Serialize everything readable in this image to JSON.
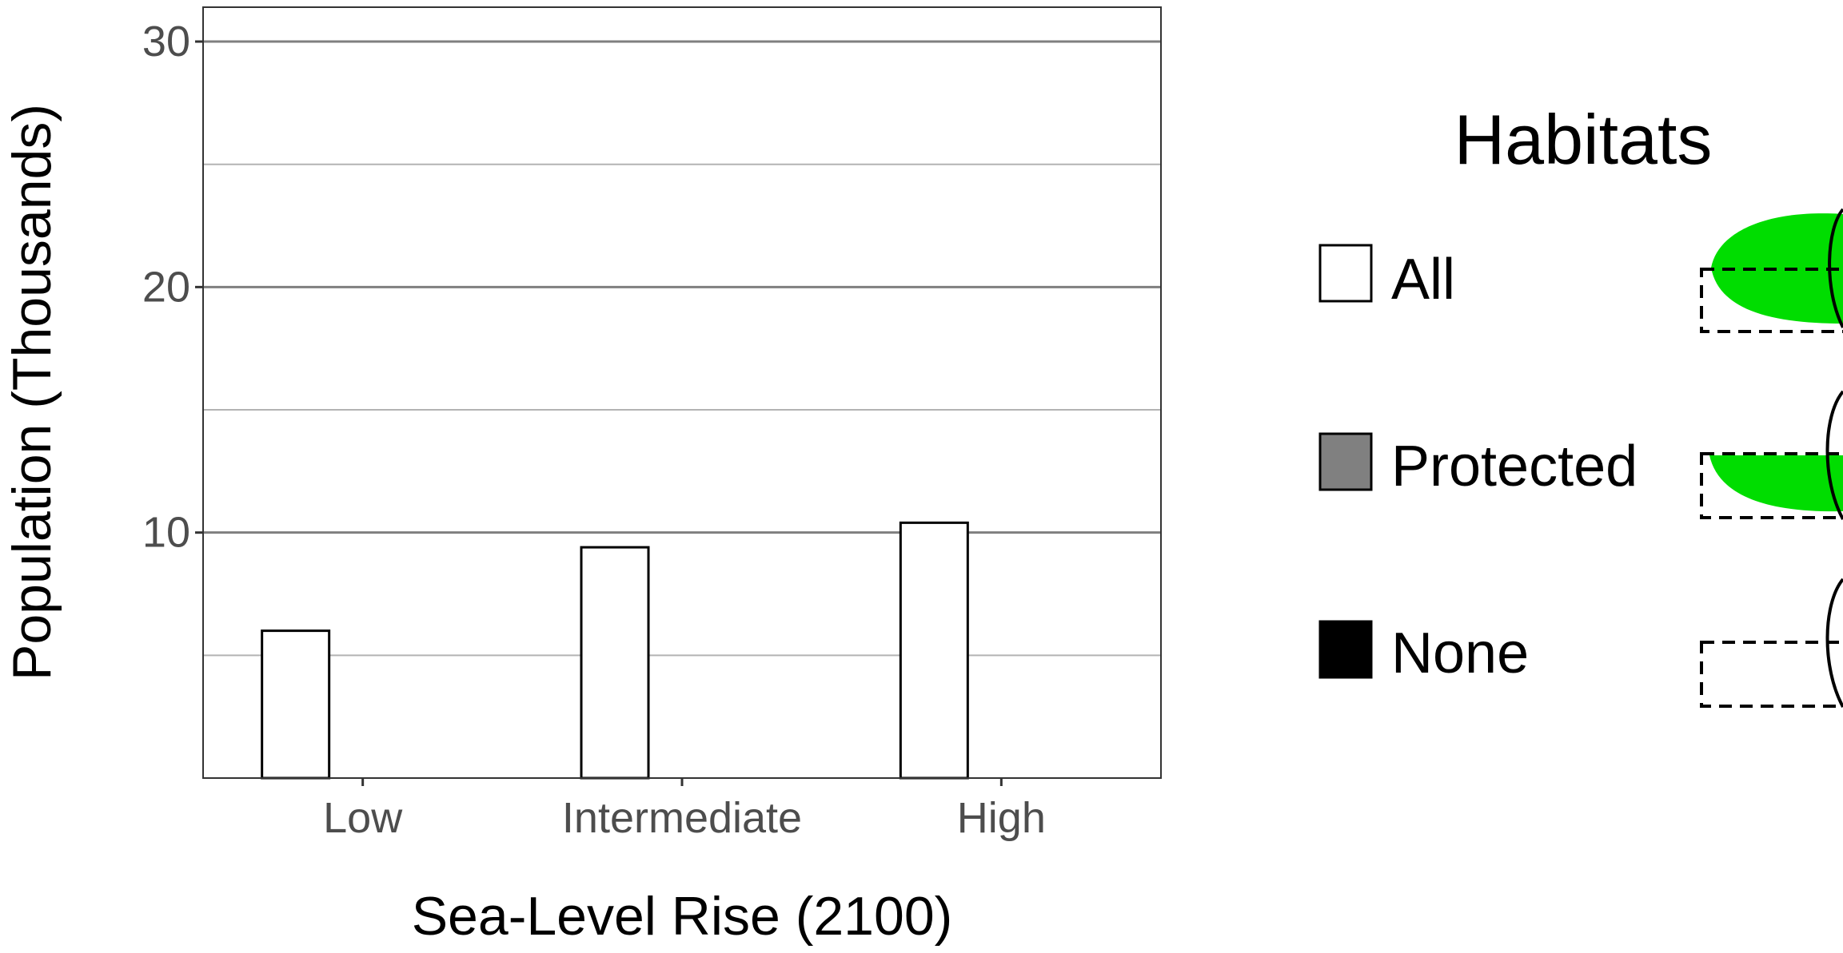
{
  "chart_data": {
    "type": "bar",
    "categories": [
      "Low",
      "Intermediate",
      "High"
    ],
    "series": [
      {
        "name": "All",
        "values": [
          6.0,
          9.4,
          10.4
        ],
        "color": "#ffffff"
      },
      {
        "name": "Protected",
        "values": [
          0,
          0,
          0
        ],
        "color": "#808080"
      },
      {
        "name": "None",
        "values": [
          0,
          0,
          0
        ],
        "color": "#000000"
      }
    ],
    "title": "",
    "xlabel": "Sea-Level Rise (2100)",
    "ylabel": "Population (Thousands)",
    "ylim": [
      0,
      31.4
    ],
    "yticks": [
      10,
      20,
      30
    ],
    "ytick_labels": [
      "10",
      "20",
      "30"
    ],
    "grid": true,
    "legend": {
      "title": "Habitats",
      "placement": "right",
      "entries": [
        {
          "label": "All",
          "swatch": "#ffffff"
        },
        {
          "label": "Protected",
          "swatch": "#808080"
        },
        {
          "label": "None",
          "swatch": "#000000"
        }
      ]
    },
    "colors": {
      "habitat_green": "#00dd00",
      "grid_major": "#7f7f7f",
      "grid_minor": "#b3b3b3"
    }
  }
}
